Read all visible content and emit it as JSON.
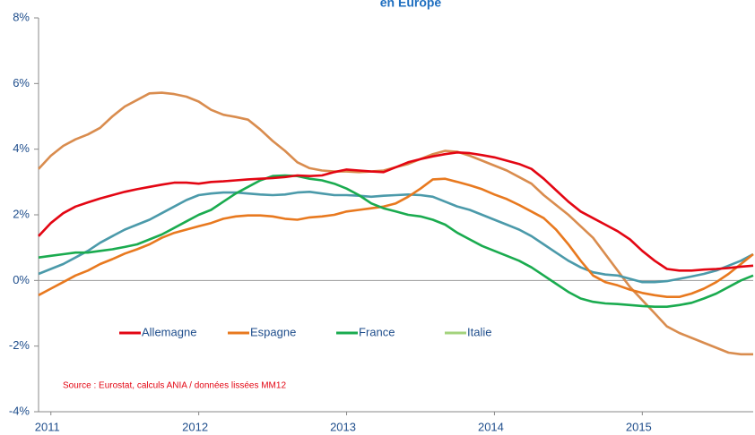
{
  "chart_data": {
    "type": "line",
    "title": "en Europe",
    "categories": [
      null,
      "2011",
      null,
      null,
      null,
      null,
      null,
      null,
      null,
      null,
      null,
      null,
      null,
      "2012",
      null,
      null,
      null,
      null,
      null,
      null,
      null,
      null,
      null,
      null,
      null,
      "2013",
      null,
      null,
      null,
      null,
      null,
      null,
      null,
      null,
      null,
      null,
      null,
      "2014",
      null,
      null,
      null,
      null,
      null,
      null,
      null,
      null,
      null,
      null,
      null,
      "2015",
      null,
      null,
      null,
      null,
      null,
      null,
      null,
      null,
      null
    ],
    "series": [
      {
        "name": "Allemagne",
        "color": "#e30613",
        "values": [
          1.35,
          1.75,
          2.05,
          2.25,
          2.38,
          2.5,
          2.6,
          2.7,
          2.78,
          2.85,
          2.92,
          2.98,
          2.98,
          2.95,
          3.0,
          3.02,
          3.05,
          3.08,
          3.1,
          3.12,
          3.15,
          3.2,
          3.18,
          3.2,
          3.3,
          3.38,
          3.35,
          3.32,
          3.3,
          3.45,
          3.6,
          3.7,
          3.78,
          3.85,
          3.9,
          3.88,
          3.82,
          3.75,
          3.65,
          3.55,
          3.4,
          3.1,
          2.75,
          2.4,
          2.1,
          1.9,
          1.7,
          1.5,
          1.25,
          0.9,
          0.6,
          0.35,
          0.3,
          0.3,
          0.33,
          0.35,
          0.38,
          0.42,
          0.45
        ]
      },
      {
        "name": "Espagne",
        "color": "#e8791f",
        "values": [
          -0.45,
          -0.25,
          -0.05,
          0.15,
          0.3,
          0.5,
          0.65,
          0.82,
          0.95,
          1.1,
          1.3,
          1.45,
          1.55,
          1.65,
          1.75,
          1.88,
          1.95,
          1.98,
          1.98,
          1.95,
          1.88,
          1.85,
          1.92,
          1.95,
          2.0,
          2.1,
          2.15,
          2.2,
          2.25,
          2.35,
          2.55,
          2.8,
          3.08,
          3.1,
          3.0,
          2.9,
          2.78,
          2.62,
          2.48,
          2.3,
          2.1,
          1.9,
          1.55,
          1.1,
          0.6,
          0.15,
          -0.05,
          -0.15,
          -0.28,
          -0.38,
          -0.45,
          -0.5,
          -0.5,
          -0.4,
          -0.25,
          -0.05,
          0.2,
          0.5,
          0.8
        ]
      },
      {
        "name": "France",
        "color": "#1aab4f",
        "values": [
          0.7,
          0.75,
          0.8,
          0.85,
          0.85,
          0.9,
          0.95,
          1.02,
          1.1,
          1.25,
          1.4,
          1.6,
          1.8,
          2.0,
          2.15,
          2.4,
          2.65,
          2.85,
          3.05,
          3.18,
          3.2,
          3.18,
          3.1,
          3.05,
          2.95,
          2.8,
          2.6,
          2.35,
          2.2,
          2.1,
          2.0,
          1.95,
          1.85,
          1.7,
          1.45,
          1.25,
          1.05,
          0.9,
          0.75,
          0.6,
          0.4,
          0.15,
          -0.1,
          -0.35,
          -0.55,
          -0.65,
          -0.7,
          -0.72,
          -0.75,
          -0.78,
          -0.8,
          -0.8,
          -0.75,
          -0.68,
          -0.55,
          -0.4,
          -0.2,
          0.0,
          0.15
        ]
      },
      {
        "name": "Italie",
        "color": "#a3d37c",
        "values": [
          null,
          null,
          null,
          null,
          null,
          null,
          null,
          null,
          null,
          null,
          null,
          null,
          null,
          null,
          null,
          null,
          null,
          null,
          null,
          null,
          null,
          null,
          null,
          null,
          null,
          null,
          null,
          null,
          null,
          null,
          null,
          null,
          null,
          null,
          null,
          null,
          null,
          null,
          null,
          null,
          null,
          null,
          null,
          null,
          null,
          null,
          null,
          null,
          null,
          null,
          null,
          null,
          null,
          null,
          null,
          null,
          null,
          null,
          null
        ]
      },
      {
        "color": "#d98c4e",
        "values": [
          3.4,
          3.8,
          4.1,
          4.3,
          4.45,
          4.65,
          5.0,
          5.3,
          5.5,
          5.7,
          5.72,
          5.68,
          5.6,
          5.45,
          5.2,
          5.05,
          4.98,
          4.9,
          4.6,
          4.25,
          3.95,
          3.6,
          3.42,
          3.35,
          3.32,
          3.32,
          3.3,
          3.32,
          3.35,
          3.45,
          3.55,
          3.7,
          3.85,
          3.95,
          3.92,
          3.8,
          3.65,
          3.5,
          3.35,
          3.15,
          2.95,
          2.6,
          2.3,
          2.0,
          1.65,
          1.3,
          0.8,
          0.3,
          -0.2,
          -0.6,
          -1.0,
          -1.4,
          -1.6,
          -1.75,
          -1.9,
          -2.05,
          -2.2,
          -2.25,
          -2.25
        ]
      },
      {
        "color": "#4b9aaa",
        "values": [
          0.2,
          0.35,
          0.5,
          0.7,
          0.9,
          1.15,
          1.35,
          1.55,
          1.7,
          1.85,
          2.05,
          2.25,
          2.45,
          2.6,
          2.65,
          2.68,
          2.68,
          2.65,
          2.62,
          2.6,
          2.62,
          2.68,
          2.7,
          2.65,
          2.6,
          2.6,
          2.58,
          2.55,
          2.58,
          2.6,
          2.62,
          2.6,
          2.55,
          2.4,
          2.25,
          2.15,
          2.0,
          1.85,
          1.7,
          1.55,
          1.35,
          1.1,
          0.85,
          0.6,
          0.4,
          0.25,
          0.18,
          0.15,
          0.05,
          -0.05,
          -0.05,
          -0.02,
          0.05,
          0.12,
          0.2,
          0.3,
          0.45,
          0.6,
          0.8
        ]
      }
    ],
    "ylim": [
      -4,
      8
    ],
    "yticks": [
      {
        "value": -4,
        "label": "-4%"
      },
      {
        "value": -2,
        "label": "-2%"
      },
      {
        "value": 0,
        "label": "0%"
      },
      {
        "value": 2,
        "label": "2%"
      },
      {
        "value": 4,
        "label": "4%"
      },
      {
        "value": 6,
        "label": "6%"
      },
      {
        "value": 8,
        "label": "8%"
      }
    ],
    "annotations": [
      "Source : Eurostat, calculs ANIA / données lissées MM12"
    ]
  }
}
